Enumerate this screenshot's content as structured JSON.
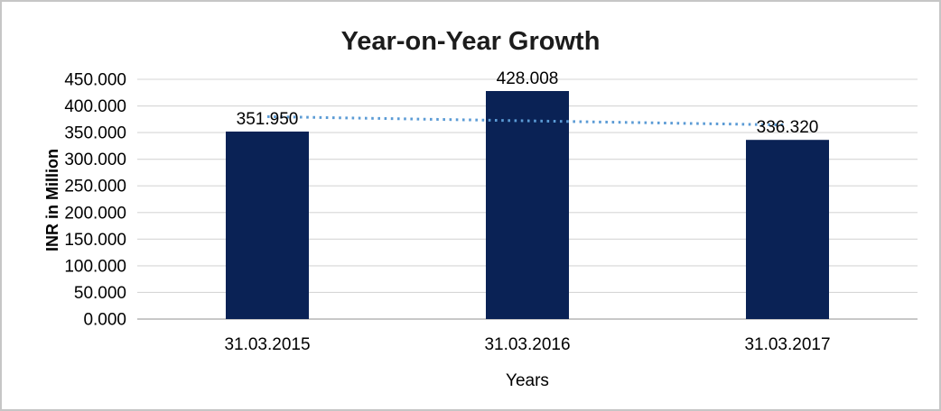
{
  "chart_data": {
    "type": "bar",
    "title": "Year-on-Year Growth",
    "xlabel": "Years",
    "ylabel": "INR in Million",
    "categories": [
      "31.03.2015",
      "31.03.2016",
      "31.03.2017"
    ],
    "values": [
      351.95,
      428.008,
      336.32
    ],
    "value_labels": [
      "351.950",
      "428.008",
      "336.320"
    ],
    "ylim": [
      0,
      450
    ],
    "ytick_step": 50,
    "ytick_labels": [
      "0.000",
      "50.000",
      "100.000",
      "150.000",
      "200.000",
      "250.000",
      "300.000",
      "350.000",
      "400.000",
      "450.000"
    ],
    "grid": "horizontal",
    "legend_position": "none",
    "trendline": {
      "type": "linear",
      "style": "dotted",
      "color": "#5b9bd5"
    },
    "colors": {
      "bar": "#0a2255",
      "gridline": "#d6d6d6",
      "axis_line": "#b5b5b5",
      "title": "#1c1c1c",
      "frame_border": "#c6c6c6"
    }
  }
}
